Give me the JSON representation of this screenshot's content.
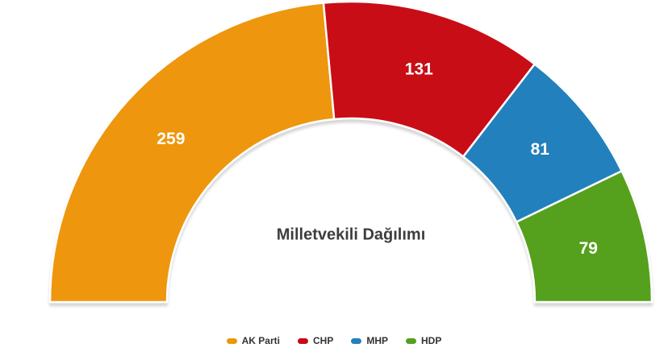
{
  "chart_data": {
    "type": "pie",
    "subtype": "semi-circle-donut",
    "title": "Milletvekili Dağılımı",
    "total_seats": 550,
    "start_angle_deg": -90,
    "end_angle_deg": 90,
    "inner_radius_ratio": 0.61,
    "grid": false,
    "legend_position": "bottom-center",
    "series": [
      {
        "name": "AK Parti",
        "value": 259,
        "color": "#ee9608"
      },
      {
        "name": "CHP",
        "value": 131,
        "color": "#c80a14"
      },
      {
        "name": "MHP",
        "value": 81,
        "color": "#2380bd"
      },
      {
        "name": "HDP",
        "value": 79,
        "color": "#55a01e"
      }
    ],
    "colors": {
      "data_label": "#ffffff",
      "title": "#3d3d3d",
      "legend_text": "#333333",
      "background": "#ffffff",
      "slice_border": "#ffffff"
    }
  }
}
